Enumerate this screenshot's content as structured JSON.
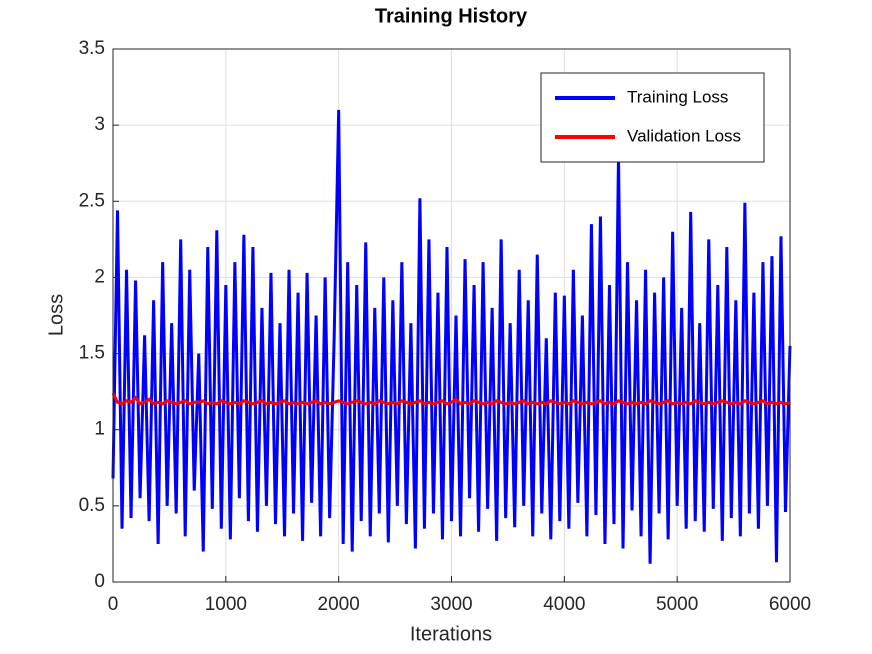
{
  "chart_data": {
    "type": "line",
    "title": "Training History",
    "x_label": "Iterations",
    "y_label": "Loss",
    "x": [
      0,
      40,
      80,
      120,
      160,
      200,
      240,
      280,
      320,
      360,
      400,
      440,
      480,
      520,
      560,
      600,
      640,
      680,
      720,
      760,
      800,
      840,
      880,
      920,
      960,
      1000,
      1040,
      1080,
      1120,
      1160,
      1200,
      1240,
      1280,
      1320,
      1360,
      1400,
      1440,
      1480,
      1520,
      1560,
      1600,
      1640,
      1680,
      1720,
      1760,
      1800,
      1840,
      1880,
      1920,
      1960,
      2000,
      2040,
      2080,
      2120,
      2160,
      2200,
      2240,
      2280,
      2320,
      2360,
      2400,
      2440,
      2480,
      2520,
      2560,
      2600,
      2640,
      2680,
      2720,
      2760,
      2800,
      2840,
      2880,
      2920,
      2960,
      3000,
      3040,
      3080,
      3120,
      3160,
      3200,
      3240,
      3280,
      3320,
      3360,
      3400,
      3440,
      3480,
      3520,
      3560,
      3600,
      3640,
      3680,
      3720,
      3760,
      3800,
      3840,
      3880,
      3920,
      3960,
      4000,
      4040,
      4080,
      4120,
      4160,
      4200,
      4240,
      4280,
      4320,
      4360,
      4400,
      4440,
      4480,
      4520,
      4560,
      4600,
      4640,
      4680,
      4720,
      4760,
      4800,
      4840,
      4880,
      4920,
      4960,
      5000,
      5040,
      5080,
      5120,
      5160,
      5200,
      5240,
      5280,
      5320,
      5360,
      5400,
      5440,
      5480,
      5520,
      5560,
      5600,
      5640,
      5680,
      5720,
      5760,
      5800,
      5840,
      5880,
      5920,
      5960,
      6000
    ],
    "series": [
      {
        "name": "Training Loss",
        "color": "#0000ff",
        "values": [
          0.68,
          2.44,
          0.35,
          2.05,
          0.42,
          1.98,
          0.55,
          1.62,
          0.4,
          1.85,
          0.25,
          2.1,
          0.5,
          1.7,
          0.45,
          2.25,
          0.3,
          2.05,
          0.6,
          1.5,
          0.2,
          2.2,
          0.48,
          2.31,
          0.35,
          1.95,
          0.28,
          2.1,
          0.55,
          2.28,
          0.4,
          2.2,
          0.33,
          1.8,
          0.5,
          2.03,
          0.38,
          1.7,
          0.3,
          2.05,
          0.45,
          1.9,
          0.27,
          2.03,
          0.52,
          1.75,
          0.3,
          2.0,
          0.42,
          1.6,
          3.1,
          0.25,
          2.1,
          0.2,
          1.95,
          0.4,
          2.23,
          0.3,
          1.8,
          0.45,
          2.0,
          0.26,
          1.85,
          0.5,
          2.1,
          0.38,
          1.7,
          0.22,
          2.52,
          0.35,
          2.25,
          0.45,
          1.9,
          0.28,
          2.2,
          0.4,
          1.75,
          0.3,
          2.12,
          0.55,
          1.95,
          0.33,
          2.1,
          0.48,
          1.8,
          0.27,
          2.25,
          0.42,
          1.7,
          0.36,
          2.05,
          0.5,
          1.85,
          0.3,
          2.15,
          0.45,
          1.6,
          0.28,
          1.9,
          0.4,
          1.88,
          0.35,
          2.05,
          0.52,
          1.75,
          0.3,
          2.35,
          0.44,
          2.4,
          0.25,
          1.95,
          0.38,
          2.8,
          0.22,
          2.1,
          0.47,
          1.85,
          0.3,
          2.05,
          0.12,
          1.9,
          0.45,
          2.0,
          0.28,
          2.3,
          0.5,
          1.8,
          0.35,
          2.43,
          0.4,
          1.7,
          0.33,
          2.25,
          0.48,
          1.95,
          0.27,
          2.2,
          0.42,
          1.85,
          0.3,
          2.49,
          0.45,
          1.9,
          0.35,
          2.1,
          0.5,
          2.14,
          0.13,
          2.27,
          0.46,
          1.55
        ]
      },
      {
        "name": "Validation Loss",
        "color": "#ff0000",
        "values": [
          1.24,
          1.18,
          1.17,
          1.19,
          1.18,
          1.21,
          1.17,
          1.18,
          1.2,
          1.17,
          1.18,
          1.17,
          1.19,
          1.18,
          1.17,
          1.18,
          1.19,
          1.17,
          1.18,
          1.18,
          1.19,
          1.17,
          1.18,
          1.17,
          1.19,
          1.18,
          1.17,
          1.18,
          1.17,
          1.19,
          1.18,
          1.17,
          1.18,
          1.19,
          1.17,
          1.18,
          1.17,
          1.18,
          1.19,
          1.17,
          1.18,
          1.17,
          1.18,
          1.17,
          1.18,
          1.19,
          1.17,
          1.18,
          1.17,
          1.18,
          1.19,
          1.18,
          1.17,
          1.18,
          1.19,
          1.18,
          1.17,
          1.18,
          1.17,
          1.19,
          1.18,
          1.17,
          1.18,
          1.17,
          1.19,
          1.18,
          1.17,
          1.18,
          1.19,
          1.17,
          1.18,
          1.17,
          1.18,
          1.19,
          1.17,
          1.18,
          1.2,
          1.17,
          1.18,
          1.17,
          1.19,
          1.18,
          1.17,
          1.18,
          1.17,
          1.19,
          1.18,
          1.17,
          1.18,
          1.17,
          1.18,
          1.19,
          1.17,
          1.18,
          1.17,
          1.18,
          1.17,
          1.19,
          1.18,
          1.17,
          1.18,
          1.17,
          1.19,
          1.18,
          1.17,
          1.18,
          1.17,
          1.18,
          1.19,
          1.17,
          1.18,
          1.17,
          1.19,
          1.18,
          1.17,
          1.18,
          1.17,
          1.18,
          1.17,
          1.19,
          1.18,
          1.17,
          1.18,
          1.19,
          1.17,
          1.18,
          1.17,
          1.18,
          1.17,
          1.19,
          1.18,
          1.17,
          1.18,
          1.17,
          1.18,
          1.19,
          1.18,
          1.17,
          1.18,
          1.17,
          1.19,
          1.18,
          1.17,
          1.18,
          1.19,
          1.17,
          1.18,
          1.17,
          1.18,
          1.17,
          1.18
        ]
      }
    ],
    "xlim": [
      0,
      6000
    ],
    "xticks": [
      0,
      1000,
      2000,
      3000,
      4000,
      5000,
      6000
    ],
    "ylim": [
      0,
      3.5
    ],
    "yticks": [
      0,
      0.5,
      1,
      1.5,
      2,
      2.5,
      3,
      3.5
    ],
    "grid": true,
    "legend": "top-right"
  }
}
